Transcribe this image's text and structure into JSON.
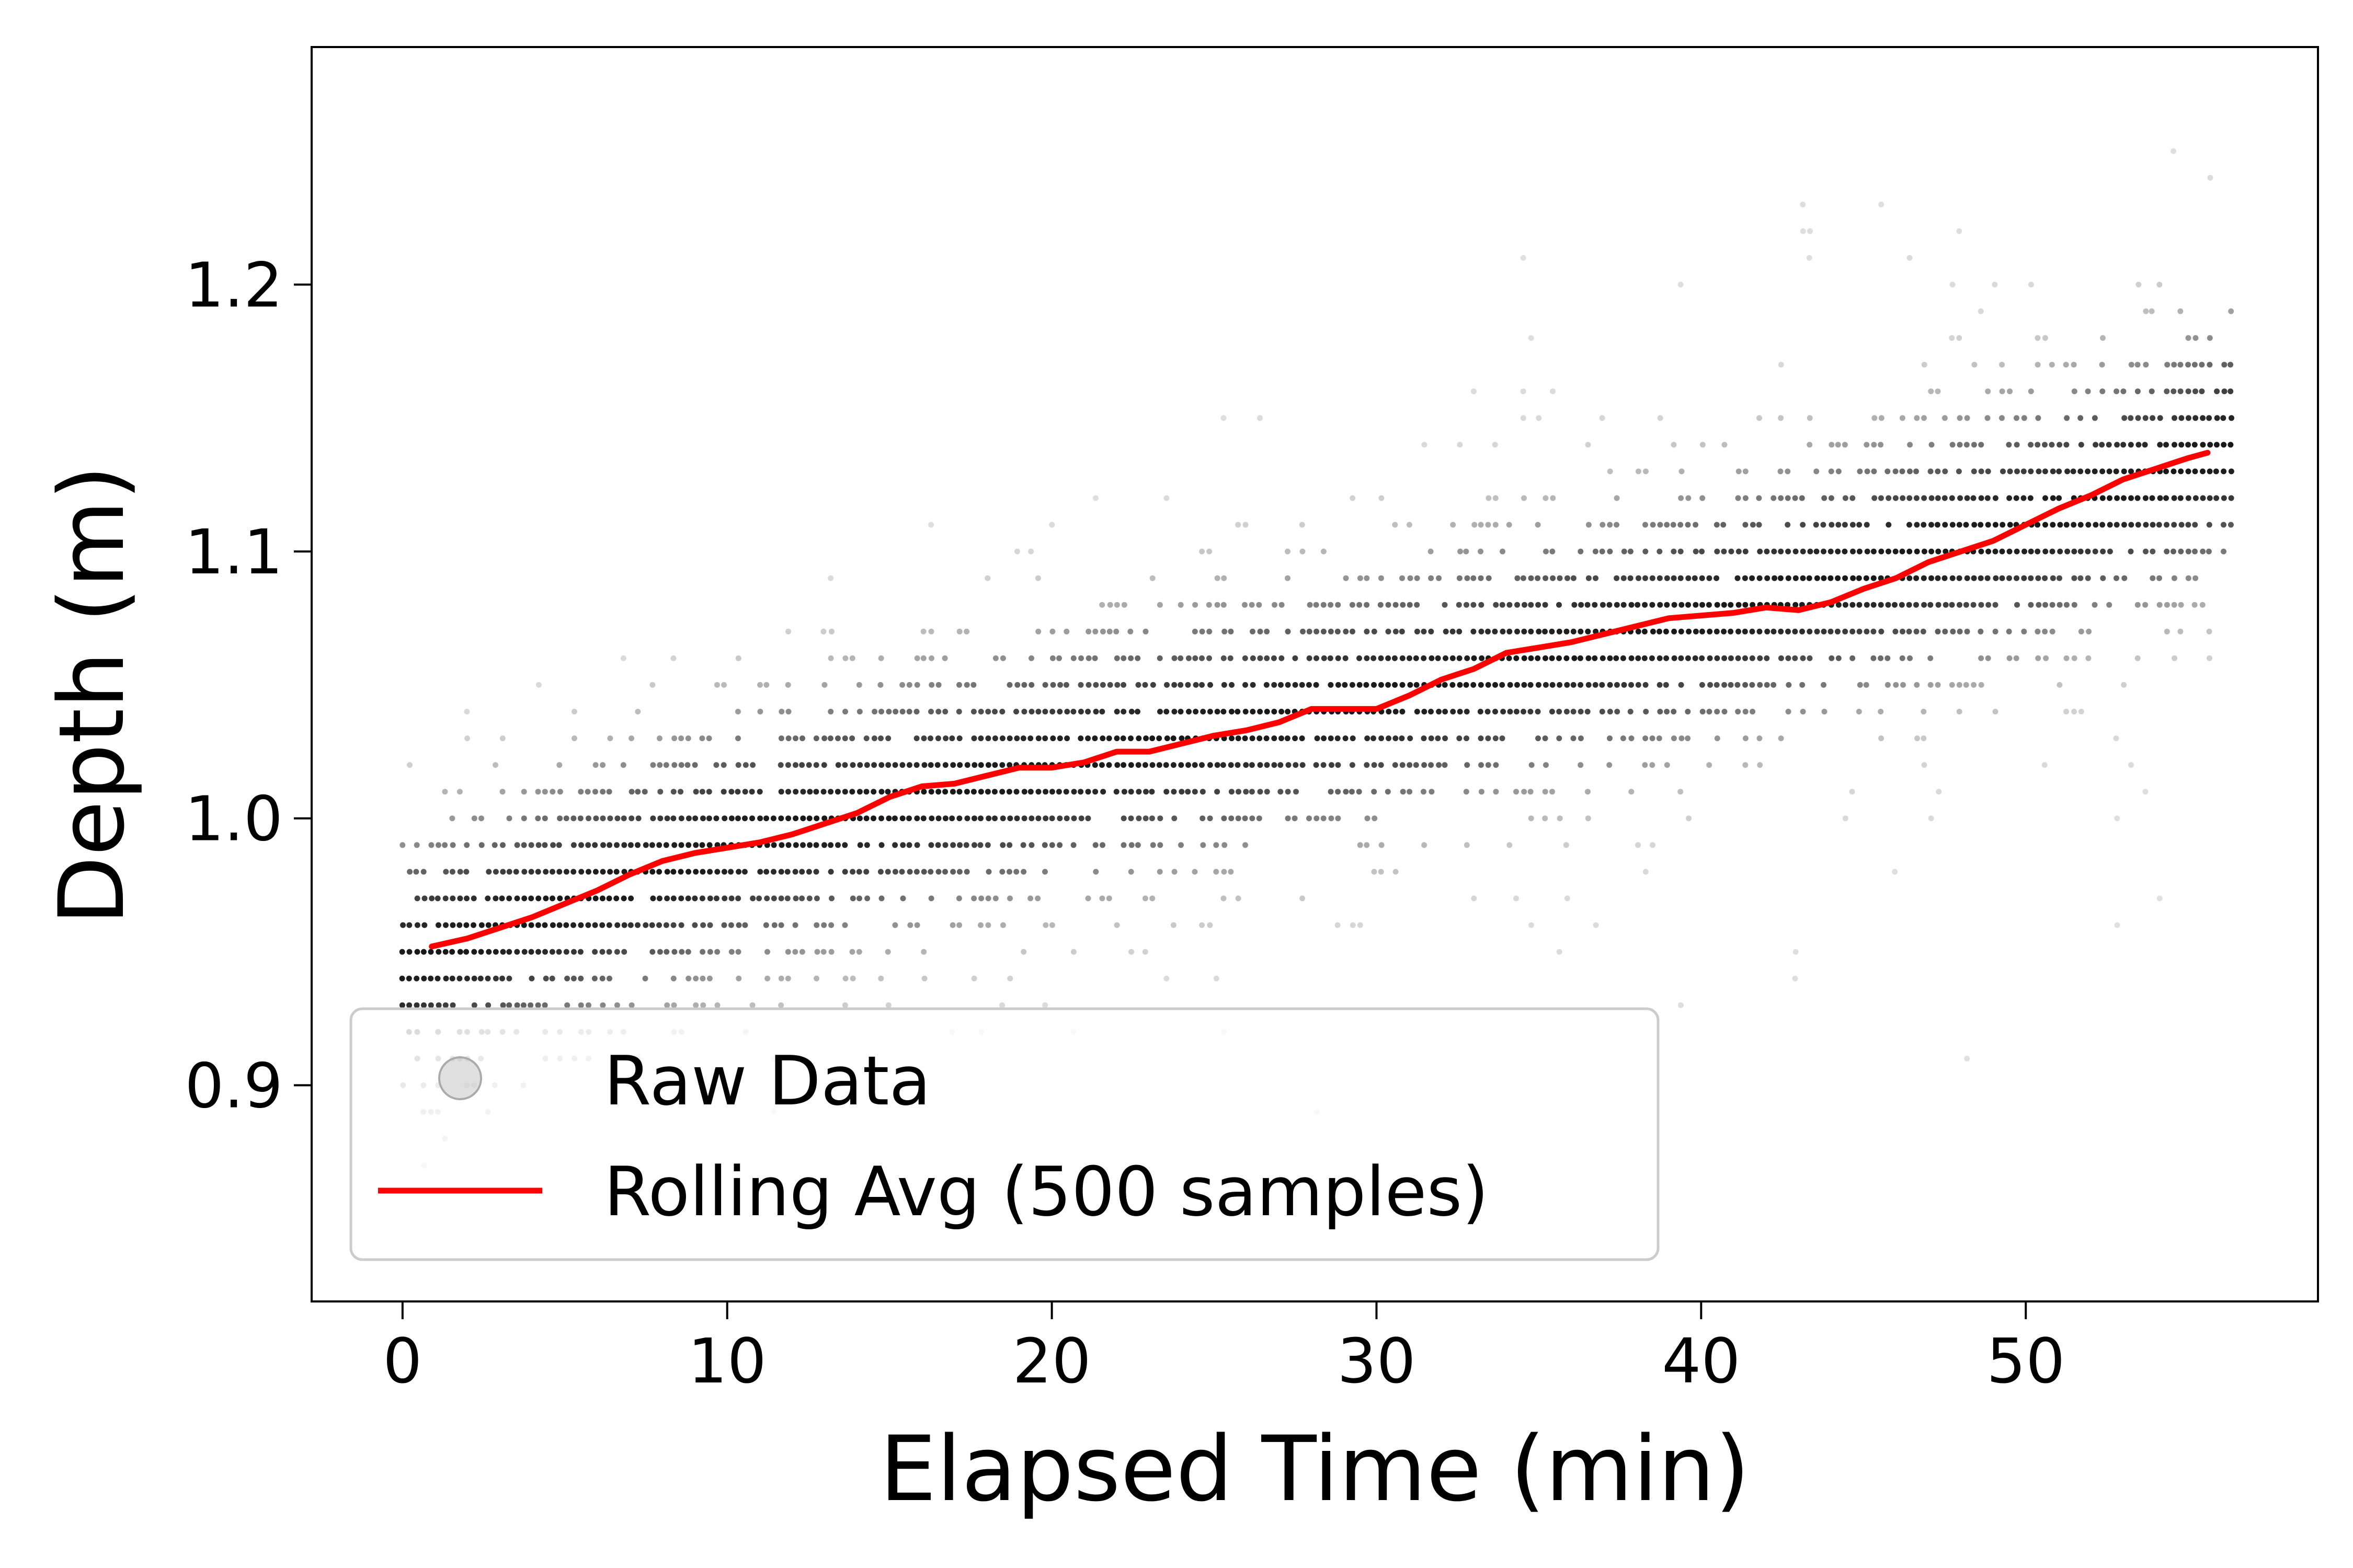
{
  "chart_data": {
    "type": "scatter",
    "title": "",
    "xlabel": "Elapsed Time (min)",
    "ylabel": "Depth (m)",
    "xlim": [
      -2.8,
      59.0
    ],
    "ylim": [
      1.289,
      0.819
    ],
    "y_inverted": true,
    "grid": false,
    "legend_position": "lower-left",
    "x_ticks": [
      0,
      10,
      20,
      30,
      40,
      50
    ],
    "x_tick_labels": [
      "0",
      "10",
      "20",
      "30",
      "40",
      "50"
    ],
    "y_ticks": [
      0.9,
      1.0,
      1.1,
      1.2
    ],
    "y_tick_labels": [
      "0.9",
      "1.0",
      "1.1",
      "1.2"
    ],
    "depth_levels_m": [
      0.84,
      0.85,
      0.86,
      0.87,
      0.88,
      0.89,
      0.9,
      0.91,
      0.92,
      0.93,
      0.94,
      0.95,
      0.96,
      0.97,
      0.98,
      0.99,
      1.0,
      1.01,
      1.02,
      1.03,
      1.04,
      1.05,
      1.06,
      1.07,
      1.08,
      1.09,
      1.1,
      1.11,
      1.12,
      1.13,
      1.14,
      1.15,
      1.16,
      1.17,
      1.18,
      1.19,
      1.2,
      1.21,
      1.22,
      1.23,
      1.24,
      1.25,
      1.26,
      1.27
    ],
    "series": [
      {
        "name": "Raw Data",
        "kind": "scatter",
        "color": "#000000",
        "time_range_min": [
          0,
          56.5
        ],
        "approx_band_center_m": [
          [
            0,
            0.945
          ],
          [
            10,
            0.99
          ],
          [
            20,
            1.02
          ],
          [
            30,
            1.045
          ],
          [
            40,
            1.075
          ],
          [
            50,
            1.11
          ],
          [
            56.5,
            1.14
          ]
        ],
        "band_half_width_m": 0.06
      },
      {
        "name": "Rolling Avg (500 samples)",
        "kind": "line",
        "color": "#ff0000",
        "x": [
          0.9,
          2.0,
          3.0,
          4.0,
          5.0,
          6.0,
          7.0,
          8.0,
          9.0,
          10.0,
          11.0,
          12.0,
          13.0,
          14.0,
          15.0,
          16.0,
          17.0,
          18.0,
          19.0,
          20.0,
          21.0,
          22.0,
          23.0,
          24.0,
          25.0,
          26.0,
          27.0,
          28.0,
          29.0,
          30.0,
          31.0,
          32.0,
          33.0,
          34.0,
          35.0,
          36.0,
          37.0,
          38.0,
          39.0,
          40.0,
          41.0,
          42.0,
          43.0,
          44.0,
          45.0,
          46.0,
          47.0,
          48.0,
          49.0,
          50.0,
          51.0,
          52.0,
          53.0,
          54.0,
          55.0,
          55.6
        ],
        "y": [
          0.952,
          0.955,
          0.959,
          0.963,
          0.968,
          0.973,
          0.979,
          0.984,
          0.987,
          0.989,
          0.991,
          0.994,
          0.998,
          1.002,
          1.008,
          1.012,
          1.013,
          1.016,
          1.019,
          1.019,
          1.021,
          1.025,
          1.025,
          1.028,
          1.031,
          1.033,
          1.036,
          1.041,
          1.041,
          1.041,
          1.046,
          1.052,
          1.056,
          1.062,
          1.064,
          1.066,
          1.069,
          1.072,
          1.075,
          1.076,
          1.077,
          1.079,
          1.078,
          1.081,
          1.086,
          1.09,
          1.096,
          1.1,
          1.104,
          1.11,
          1.116,
          1.121,
          1.127,
          1.131,
          1.135,
          1.137
        ]
      }
    ]
  }
}
